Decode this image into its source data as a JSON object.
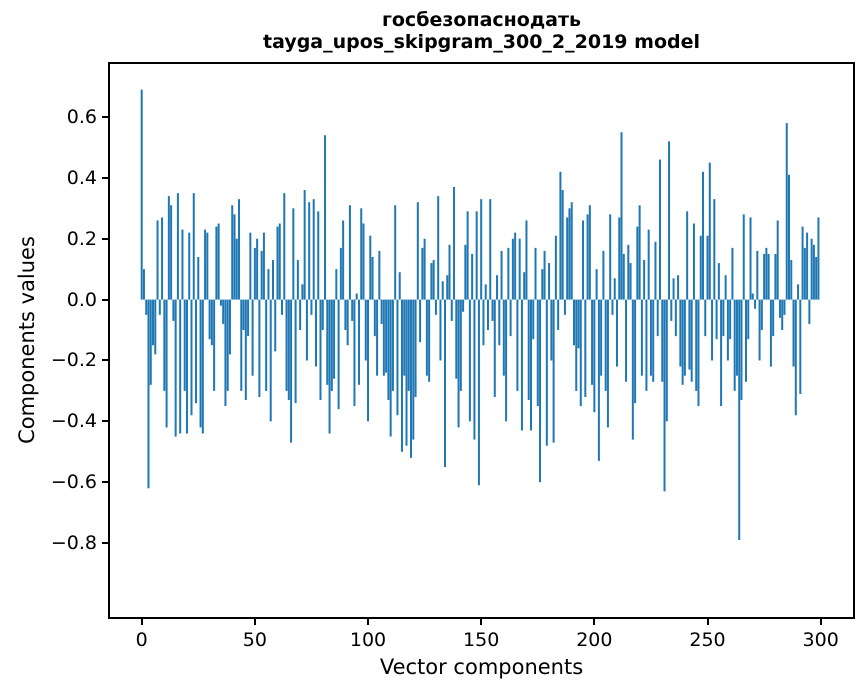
{
  "figure": {
    "title_line1": "госбезопаснодать",
    "title_line2": "tayga_upos_skipgram_300_2_2019 model",
    "xlabel": "Vector components",
    "ylabel": "Components values"
  },
  "chart_data": {
    "type": "bar",
    "title": "госбезопаснодать\ntayga_upos_skipgram_300_2_2019 model",
    "xlabel": "Vector components",
    "ylabel": "Components values",
    "legend": "none",
    "grid": false,
    "bar_color": "#1f77b4",
    "spine_color": "#000000",
    "n_components": 300,
    "xlim": [
      -14.5,
      314.9
    ],
    "ylim": [
      -1.03,
      0.78
    ],
    "x_ticks": [
      {
        "label": "0",
        "v": 0
      },
      {
        "label": "50",
        "v": 50
      },
      {
        "label": "100",
        "v": 100
      },
      {
        "label": "150",
        "v": 150
      },
      {
        "label": "200",
        "v": 200
      },
      {
        "label": "250",
        "v": 250
      },
      {
        "label": "300",
        "v": 300
      }
    ],
    "y_ticks": [
      {
        "label": "0.6",
        "v": 0.6
      },
      {
        "label": "0.4",
        "v": 0.4
      },
      {
        "label": "0.2",
        "v": 0.2
      },
      {
        "label": "0.0",
        "v": 0.0
      },
      {
        "label": "−0.2",
        "v": -0.2
      },
      {
        "label": "−0.4",
        "v": -0.4
      },
      {
        "label": "−0.6",
        "v": -0.6
      },
      {
        "label": "−0.8",
        "v": -0.8
      }
    ],
    "values": [
      0.69,
      0.1,
      -0.05,
      -0.62,
      -0.28,
      -0.15,
      -0.18,
      0.26,
      -0.05,
      0.27,
      -0.3,
      -0.42,
      0.34,
      0.31,
      -0.07,
      -0.45,
      0.35,
      -0.44,
      0.23,
      -0.3,
      -0.44,
      0.22,
      -0.38,
      0.35,
      -0.34,
      0.14,
      -0.42,
      -0.44,
      0.23,
      0.22,
      -0.13,
      -0.15,
      -0.3,
      0.24,
      0.25,
      -0.02,
      -0.08,
      -0.35,
      -0.3,
      -0.18,
      0.31,
      0.28,
      0.2,
      0.33,
      -0.3,
      -0.1,
      -0.33,
      -0.12,
      0.22,
      -0.25,
      0.17,
      0.2,
      -0.32,
      0.16,
      0.22,
      -0.3,
      0.1,
      -0.4,
      0.13,
      -0.17,
      0.24,
      0.25,
      -0.05,
      0.35,
      -0.3,
      -0.33,
      -0.47,
      0.3,
      -0.34,
      0.13,
      -0.1,
      0.05,
      0.36,
      -0.2,
      0.32,
      -0.05,
      0.33,
      -0.22,
      0.29,
      -0.33,
      -0.1,
      0.54,
      -0.28,
      -0.44,
      -0.3,
      -0.26,
      0.1,
      -0.36,
      0.17,
      0.26,
      -0.1,
      -0.15,
      0.31,
      -0.07,
      -0.35,
      0.02,
      -0.28,
      0.3,
      0.25,
      -0.2,
      -0.4,
      0.21,
      0.14,
      -0.12,
      -0.25,
      0.16,
      -0.08,
      -0.25,
      -0.24,
      -0.33,
      -0.45,
      -0.3,
      0.31,
      -0.38,
      0.09,
      -0.5,
      -0.25,
      -0.48,
      -0.3,
      -0.52,
      -0.46,
      -0.32,
      0.32,
      -0.14,
      0.17,
      0.2,
      -0.25,
      -0.27,
      0.12,
      0.13,
      -0.05,
      0.34,
      -0.2,
      0.06,
      -0.55,
      0.08,
      0.18,
      -0.07,
      0.37,
      -0.26,
      -0.42,
      -0.3,
      -0.04,
      0.18,
      0.29,
      -0.4,
      0.15,
      -0.46,
      0.29,
      -0.61,
      0.33,
      -0.15,
      0.05,
      -0.1,
      0.33,
      -0.07,
      -0.32,
      0.08,
      -0.15,
      0.16,
      -0.25,
      -0.4,
      0.17,
      -0.12,
      0.2,
      0.22,
      -0.3,
      0.2,
      -0.43,
      0.09,
      0.26,
      -0.33,
      -0.43,
      -0.13,
      0.17,
      -0.35,
      -0.6,
      0.1,
      0.16,
      -0.48,
      0.12,
      -0.2,
      -0.47,
      0.21,
      -0.1,
      0.42,
      0.36,
      -0.05,
      0.27,
      0.3,
      0.32,
      -0.15,
      -0.3,
      -0.16,
      -0.35,
      0.26,
      -0.32,
      0.28,
      0.31,
      -0.28,
      -0.37,
      0.1,
      -0.53,
      -0.25,
      0.16,
      -0.3,
      -0.42,
      0.28,
      -0.05,
      0.07,
      -0.22,
      0.27,
      0.55,
      0.15,
      -0.27,
      0.18,
      0.12,
      -0.46,
      -0.34,
      0.24,
      0.31,
      -0.25,
      0.13,
      -0.3,
      0.23,
      -0.25,
      -0.27,
      0.19,
      -0.12,
      0.46,
      -0.27,
      -0.63,
      -0.4,
      0.52,
      -0.07,
      0.07,
      -0.12,
      0.08,
      -0.22,
      -0.28,
      -0.25,
      0.29,
      -0.23,
      -0.27,
      0.25,
      -0.3,
      -0.35,
      0.21,
      0.42,
      -0.12,
      0.21,
      0.45,
      -0.2,
      0.33,
      -0.13,
      0.12,
      -0.35,
      -0.12,
      0.08,
      -0.2,
      -0.13,
      0.17,
      -0.3,
      -0.25,
      -0.79,
      -0.33,
      0.28,
      -0.27,
      -0.13,
      0.27,
      0.02,
      -0.03,
      0.16,
      -0.2,
      -0.1,
      0.15,
      0.17,
      0.15,
      -0.22,
      -0.12,
      0.15,
      0.26,
      -0.06,
      -0.1,
      -0.05,
      0.58,
      0.41,
      0.13,
      -0.22,
      -0.38,
      0.05,
      -0.31,
      0.24,
      0.17,
      0.22,
      -0.08,
      0.2,
      0.18,
      0.14,
      0.27
    ]
  }
}
